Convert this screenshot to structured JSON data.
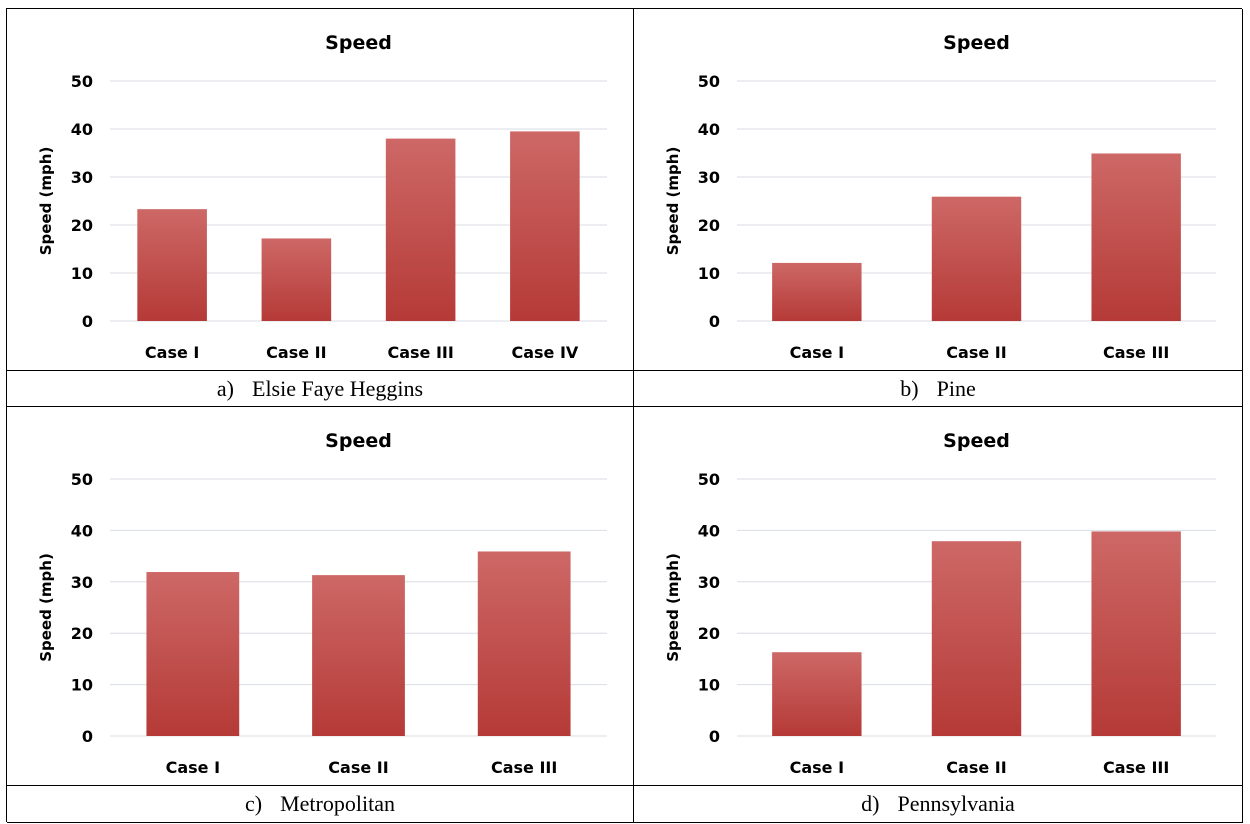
{
  "panels": [
    {
      "letter": "a)",
      "caption": "Elsie Faye Heggins"
    },
    {
      "letter": "b)",
      "caption": "Pine"
    },
    {
      "letter": "c)",
      "caption": "Metropolitan"
    },
    {
      "letter": "d)",
      "caption": "Pennsylvania"
    }
  ],
  "colors": {
    "bar_top": "#cd6866",
    "bar_bottom": "#b53a37",
    "grid": "#d9dde3"
  },
  "chart_data": [
    {
      "type": "bar",
      "title": "Speed",
      "ylabel": "Speed (mph)",
      "xlabel": "",
      "categories": [
        "Case I",
        "Case II",
        "Case III",
        "Case IV"
      ],
      "values": [
        23.3,
        17.2,
        38,
        39.5
      ],
      "ylim": [
        0,
        50
      ],
      "yticks": [
        "0",
        "10",
        "20",
        "30",
        "40",
        "50"
      ],
      "grid": true,
      "legend": "none"
    },
    {
      "type": "bar",
      "title": "Speed",
      "ylabel": "Speed (mph)",
      "xlabel": "",
      "categories": [
        "Case I",
        "Case II",
        "Case III"
      ],
      "values": [
        12.1,
        25.9,
        34.9
      ],
      "ylim": [
        0,
        50
      ],
      "yticks": [
        "0",
        "10",
        "20",
        "30",
        "40",
        "50"
      ],
      "grid": true,
      "legend": "none"
    },
    {
      "type": "bar",
      "title": "Speed",
      "ylabel": "Speed (mph)",
      "xlabel": "",
      "categories": [
        "Case I",
        "Case II",
        "Case III"
      ],
      "values": [
        31.9,
        31.3,
        35.9
      ],
      "ylim": [
        0,
        50
      ],
      "yticks": [
        "0",
        "10",
        "20",
        "30",
        "40",
        "50"
      ],
      "grid": true,
      "legend": "none"
    },
    {
      "type": "bar",
      "title": "Speed",
      "ylabel": "Speed (mph)",
      "xlabel": "",
      "categories": [
        "Case I",
        "Case II",
        "Case III"
      ],
      "values": [
        16.3,
        37.9,
        39.8
      ],
      "ylim": [
        0,
        50
      ],
      "yticks": [
        "0",
        "10",
        "20",
        "30",
        "40",
        "50"
      ],
      "grid": true,
      "legend": "none"
    }
  ]
}
